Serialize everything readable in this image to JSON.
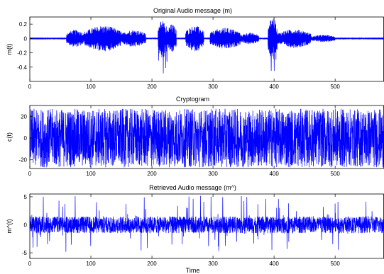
{
  "chart_data": [
    {
      "type": "line",
      "title": "Original Audio message (m)",
      "xlabel": "",
      "ylabel": "m(t)",
      "xlim": [
        0,
        580
      ],
      "ylim": [
        -0.6,
        0.3
      ],
      "xticks": [
        0,
        100,
        200,
        300,
        400,
        500
      ],
      "yticks": [
        0.2,
        0,
        -0.2,
        -0.4
      ],
      "ytick_labels": [
        "0.2",
        "0",
        "-0.2",
        "-0.4"
      ],
      "color": "#0000ff",
      "series": [
        {
          "signal": "audio_envelope",
          "noise_floor": 0.004,
          "bursts": [
            {
              "x": [
                60,
                90
              ],
              "amp": 0.12
            },
            {
              "x": [
                90,
                150
              ],
              "amp": 0.18
            },
            {
              "x": [
                150,
                190
              ],
              "amp": 0.12
            },
            {
              "x": [
                210,
                225
              ],
              "amp": 0.28,
              "min": -0.57
            },
            {
              "x": [
                225,
                240
              ],
              "amp": 0.2
            },
            {
              "x": [
                255,
                285
              ],
              "amp": 0.18
            },
            {
              "x": [
                295,
                345
              ],
              "amp": 0.15
            },
            {
              "x": [
                345,
                375
              ],
              "amp": 0.08
            },
            {
              "x": [
                390,
                405
              ],
              "amp": 0.3,
              "min": -0.5
            },
            {
              "x": [
                405,
                460
              ],
              "amp": 0.13
            },
            {
              "x": [
                460,
                500
              ],
              "amp": 0.05
            }
          ]
        }
      ]
    },
    {
      "type": "line",
      "title": "Cryptogram",
      "xlabel": "",
      "ylabel": "c(t)",
      "xlim": [
        0,
        580
      ],
      "ylim": [
        -28,
        30
      ],
      "xticks": [
        0,
        100,
        200,
        300,
        400,
        500
      ],
      "yticks": [
        20,
        0,
        -20
      ],
      "ytick_labels": [
        "20",
        "0",
        "-20"
      ],
      "color": "#0000ff",
      "series": [
        {
          "signal": "uniform_noise",
          "amplitude": 27
        }
      ]
    },
    {
      "type": "line",
      "title": "Retrieved Audio message (m^)",
      "xlabel": "Time",
      "ylabel": "m^(t)",
      "xlim": [
        0,
        580
      ],
      "ylim": [
        -6,
        5.5
      ],
      "xticks": [
        0,
        100,
        200,
        300,
        400,
        500
      ],
      "yticks": [
        5,
        0,
        -5
      ],
      "ytick_labels": [
        "5",
        "0",
        "-5"
      ],
      "color": "#0000ff",
      "series": [
        {
          "signal": "spiky_noise",
          "amplitude": 1.5,
          "peak": 5.2
        }
      ]
    }
  ]
}
